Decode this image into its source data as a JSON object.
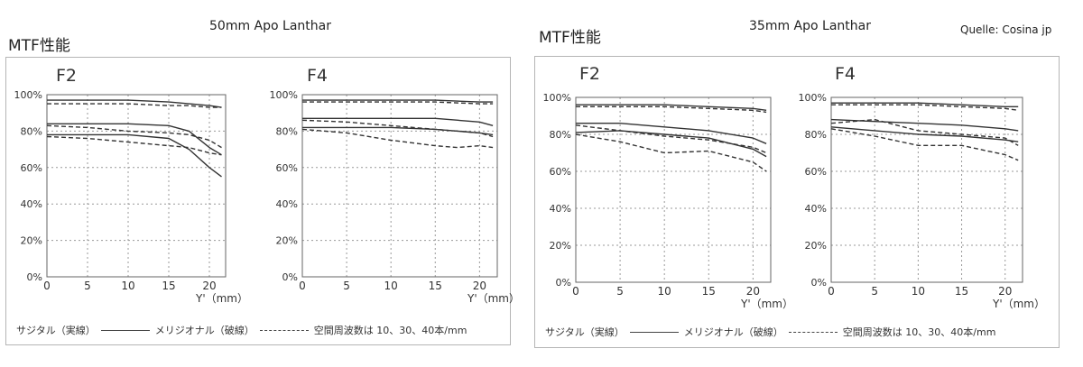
{
  "page": {
    "left_lens_title": "50mm Apo Lanthar",
    "right_lens_title": "35mm Apo Lanthar",
    "source": "Quelle: Cosina jp",
    "left_heading": "MTF性能",
    "right_heading": "MTF性能"
  },
  "legend": {
    "sagittal": "サジタル（実線）",
    "meridional": "メリジオナル（破線）",
    "freq": "空間周波数は 10、30、40本/mm"
  },
  "chart_data": [
    {
      "type": "line",
      "title": "F2",
      "xlabel": "Y'（mm）",
      "ylabel": "",
      "xlim": [
        0,
        22
      ],
      "ylim": [
        0,
        100
      ],
      "x_ticks": [
        0,
        5,
        10,
        15,
        20
      ],
      "y_ticks": [
        "0%",
        "20%",
        "40%",
        "60%",
        "80%",
        "100%"
      ],
      "grid": true,
      "series": [
        {
          "style": "solid",
          "x": [
            0,
            5,
            10,
            15,
            17.5,
            20,
            21.5
          ],
          "y": [
            97,
            97,
            97,
            96,
            95,
            94,
            93
          ]
        },
        {
          "style": "dashed",
          "x": [
            0,
            5,
            10,
            15,
            17.5,
            20,
            21.5
          ],
          "y": [
            95,
            95,
            95,
            94,
            94,
            93,
            93
          ]
        },
        {
          "style": "solid",
          "x": [
            0,
            5,
            10,
            15,
            17.5,
            20,
            21.5
          ],
          "y": [
            84,
            84,
            84,
            83,
            80,
            71,
            67
          ]
        },
        {
          "style": "dashed",
          "x": [
            0,
            5,
            10,
            15,
            17.5,
            20,
            21.5
          ],
          "y": [
            83,
            82,
            80,
            79,
            78,
            75,
            71
          ]
        },
        {
          "style": "solid",
          "x": [
            0,
            5,
            10,
            15,
            17.5,
            20,
            21.5
          ],
          "y": [
            78,
            78,
            78,
            76,
            70,
            60,
            55
          ]
        },
        {
          "style": "dashed",
          "x": [
            0,
            5,
            10,
            15,
            17.5,
            20,
            21.5
          ],
          "y": [
            77,
            76,
            74,
            72,
            71,
            68,
            67
          ]
        }
      ]
    },
    {
      "type": "line",
      "title": "F4",
      "xlabel": "Y'（mm）",
      "ylabel": "",
      "xlim": [
        0,
        22
      ],
      "ylim": [
        0,
        100
      ],
      "x_ticks": [
        0,
        5,
        10,
        15,
        20
      ],
      "y_ticks": [
        "0%",
        "20%",
        "40%",
        "60%",
        "80%",
        "100%"
      ],
      "grid": true,
      "series": [
        {
          "style": "solid",
          "x": [
            0,
            5,
            10,
            15,
            20,
            21.5
          ],
          "y": [
            97,
            97,
            97,
            97,
            96,
            96
          ]
        },
        {
          "style": "dashed",
          "x": [
            0,
            5,
            10,
            15,
            20,
            21.5
          ],
          "y": [
            96,
            96,
            96,
            96,
            95,
            95
          ]
        },
        {
          "style": "solid",
          "x": [
            0,
            5,
            10,
            15,
            20,
            21.5
          ],
          "y": [
            87,
            87,
            87,
            87,
            85,
            83
          ]
        },
        {
          "style": "dashed",
          "x": [
            0,
            5,
            10,
            15,
            20,
            21.5
          ],
          "y": [
            86,
            85,
            83,
            81,
            79,
            77
          ]
        },
        {
          "style": "solid",
          "x": [
            0,
            5,
            10,
            15,
            20,
            21.5
          ],
          "y": [
            82,
            82,
            82,
            81,
            79,
            78
          ]
        },
        {
          "style": "dashed",
          "x": [
            0,
            5,
            10,
            15,
            17.5,
            20,
            21.5
          ],
          "y": [
            81,
            79,
            75,
            72,
            71,
            72,
            71
          ]
        }
      ]
    },
    {
      "type": "line",
      "title": "F2",
      "xlabel": "Y'（mm）",
      "ylabel": "",
      "xlim": [
        0,
        22
      ],
      "ylim": [
        0,
        100
      ],
      "x_ticks": [
        0,
        5,
        10,
        15,
        20
      ],
      "y_ticks": [
        "0%",
        "20%",
        "40%",
        "60%",
        "80%",
        "100%"
      ],
      "grid": true,
      "series": [
        {
          "style": "solid",
          "x": [
            0,
            5,
            10,
            15,
            20,
            21.5
          ],
          "y": [
            96,
            96,
            96,
            95,
            94,
            93
          ]
        },
        {
          "style": "dashed",
          "x": [
            0,
            5,
            10,
            15,
            20,
            21.5
          ],
          "y": [
            95,
            95,
            95,
            94,
            93,
            92
          ]
        },
        {
          "style": "solid",
          "x": [
            0,
            5,
            10,
            15,
            20,
            21.5
          ],
          "y": [
            86,
            86,
            84,
            82,
            78,
            75
          ]
        },
        {
          "style": "dashed",
          "x": [
            0,
            5,
            10,
            15,
            20,
            21.5
          ],
          "y": [
            85,
            82,
            79,
            77,
            73,
            70
          ]
        },
        {
          "style": "solid",
          "x": [
            0,
            5,
            10,
            15,
            20,
            21.5
          ],
          "y": [
            81,
            82,
            80,
            78,
            72,
            68
          ]
        },
        {
          "style": "dashed",
          "x": [
            0,
            5,
            10,
            15,
            20,
            21.5
          ],
          "y": [
            80,
            76,
            70,
            71,
            65,
            60
          ]
        }
      ]
    },
    {
      "type": "line",
      "title": "F4",
      "xlabel": "Y'（mm）",
      "ylabel": "",
      "xlim": [
        0,
        22
      ],
      "ylim": [
        0,
        100
      ],
      "x_ticks": [
        0,
        5,
        10,
        15,
        20
      ],
      "y_ticks": [
        "0%",
        "20%",
        "40%",
        "60%",
        "80%",
        "100%"
      ],
      "grid": true,
      "series": [
        {
          "style": "solid",
          "x": [
            0,
            5,
            10,
            15,
            20,
            21.5
          ],
          "y": [
            97,
            97,
            97,
            96,
            95,
            95
          ]
        },
        {
          "style": "dashed",
          "x": [
            0,
            5,
            10,
            15,
            20,
            21.5
          ],
          "y": [
            96,
            96,
            96,
            95,
            94,
            93
          ]
        },
        {
          "style": "solid",
          "x": [
            0,
            5,
            10,
            15,
            20,
            21.5
          ],
          "y": [
            88,
            87,
            86,
            85,
            83,
            82
          ]
        },
        {
          "style": "dashed",
          "x": [
            0,
            5,
            10,
            15,
            20,
            21.5
          ],
          "y": [
            86,
            88,
            82,
            80,
            78,
            74
          ]
        },
        {
          "style": "solid",
          "x": [
            0,
            5,
            10,
            15,
            20,
            21.5
          ],
          "y": [
            84,
            82,
            80,
            79,
            77,
            76
          ]
        },
        {
          "style": "dashed",
          "x": [
            0,
            5,
            10,
            15,
            20,
            21.5
          ],
          "y": [
            83,
            79,
            74,
            74,
            69,
            66
          ]
        }
      ]
    }
  ]
}
